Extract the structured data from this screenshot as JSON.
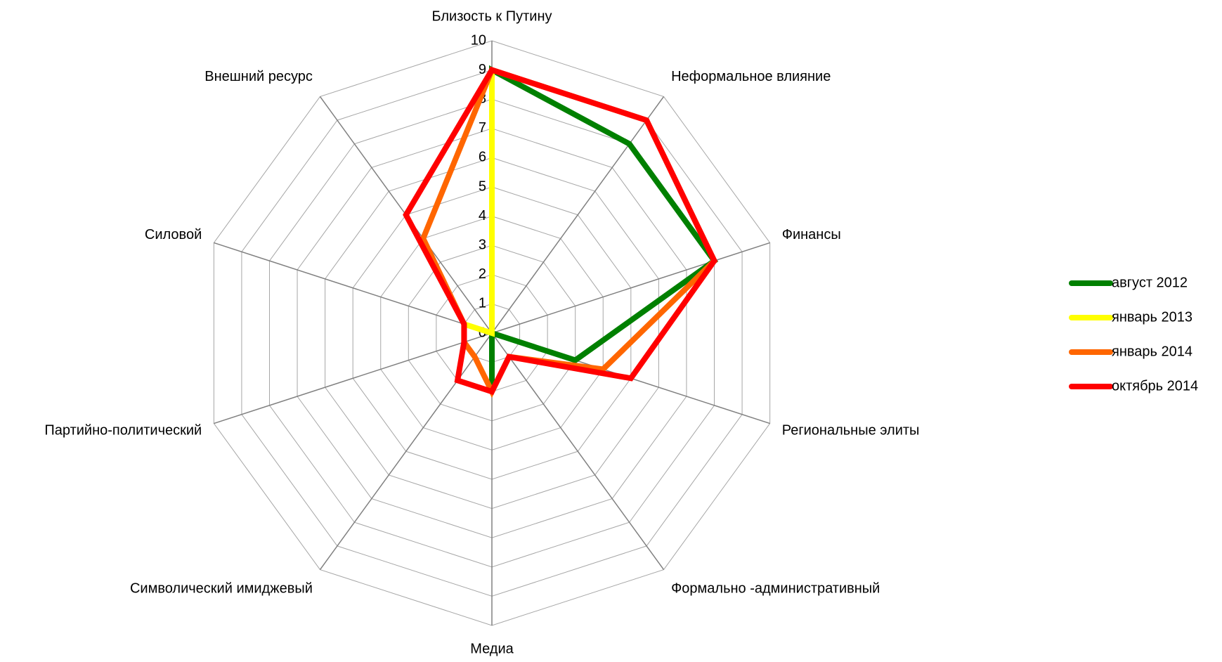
{
  "chart_data": {
    "type": "radar",
    "categories": [
      "Близость к Путину",
      "Неформальное влияние",
      "Финансы",
      "Региональные элиты",
      "Формально -административный",
      "Медиа",
      "Символический имиджевый",
      "Партийно-политический",
      "Силовой",
      "Внешний ресурс"
    ],
    "rlim": [
      0,
      10
    ],
    "rticks": [
      0,
      1,
      2,
      3,
      4,
      5,
      6,
      7,
      8,
      9,
      10
    ],
    "grid": true,
    "legend": "right",
    "series": [
      {
        "name": "август 2012",
        "color": "#008000",
        "values": [
          9,
          8,
          8,
          3,
          0,
          2,
          0,
          0,
          0,
          0
        ]
      },
      {
        "name": "январь 2013",
        "color": "#ffff00",
        "values": [
          9,
          0,
          0,
          0,
          0,
          0,
          0,
          0,
          1,
          0
        ]
      },
      {
        "name": "январь 2014",
        "color": "#ff6600",
        "values": [
          9,
          9,
          8,
          4,
          1,
          2,
          1,
          1,
          1,
          4
        ]
      },
      {
        "name": "октябрь 2014",
        "color": "#ff0000",
        "values": [
          9,
          9,
          8,
          5,
          1,
          2,
          2,
          1,
          1,
          5
        ]
      }
    ]
  }
}
